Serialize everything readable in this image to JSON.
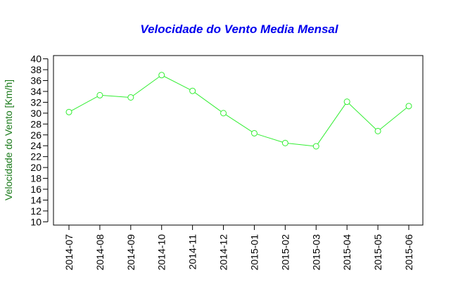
{
  "chart_data": {
    "type": "line",
    "title": "Velocidade do Vento Media Mensal",
    "xlabel": "",
    "ylabel": "Velocidade do Vento [Km/h]",
    "categories": [
      "2014-07",
      "2014-08",
      "2014-09",
      "2014-10",
      "2014-11",
      "2014-12",
      "2015-01",
      "2015-02",
      "2015-03",
      "2015-04",
      "2015-05",
      "2015-06"
    ],
    "series": [
      {
        "values": [
          30.2,
          33.3,
          32.9,
          37.0,
          34.1,
          30.0,
          26.3,
          24.5,
          23.9,
          32.1,
          26.7,
          31.3
        ]
      }
    ],
    "yticks": [
      10,
      12,
      14,
      16,
      18,
      20,
      22,
      24,
      26,
      28,
      30,
      32,
      34,
      36,
      38,
      40
    ],
    "ylim": [
      9.4,
      40.6
    ],
    "grid": false,
    "colors": {
      "title": "#0000ee",
      "ylabel": "#1a7a1a",
      "series": "#33ee33",
      "axis": "#000000"
    }
  }
}
